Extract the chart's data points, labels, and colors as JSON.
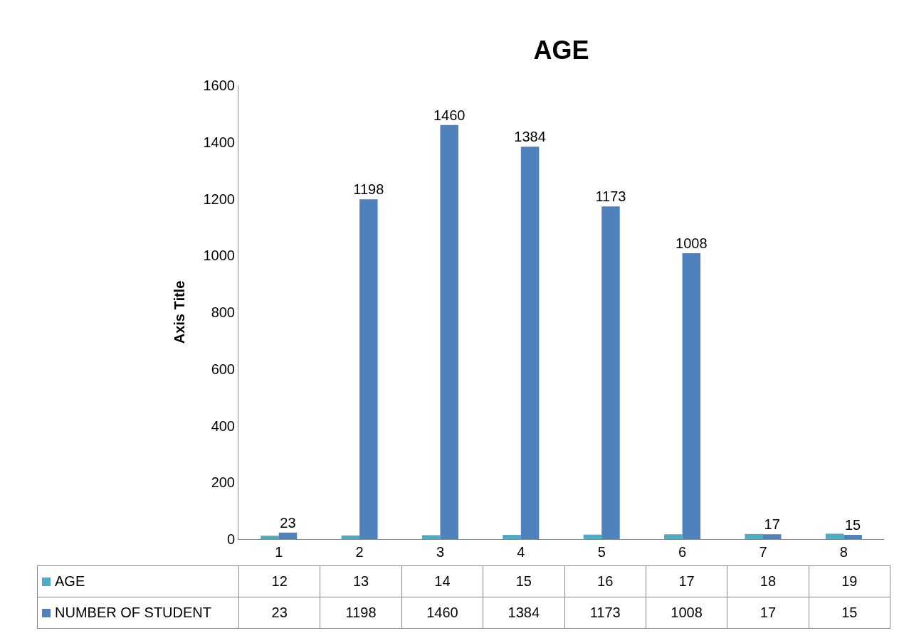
{
  "chart_data": {
    "type": "bar",
    "title": "AGE",
    "ylabel": "Axis Title",
    "categories": [
      "1",
      "2",
      "3",
      "4",
      "5",
      "6",
      "7",
      "8"
    ],
    "series": [
      {
        "name": "AGE",
        "color": "#4bacc6",
        "values": [
          12,
          13,
          14,
          15,
          16,
          17,
          18,
          19
        ]
      },
      {
        "name": "NUMBER OF STUDENT",
        "color": "#4f81bd",
        "values": [
          23,
          1198,
          1460,
          1384,
          1173,
          1008,
          17,
          15
        ],
        "value_labels": [
          "23",
          "1198",
          "1460",
          "1384",
          "1173",
          "1008",
          "17",
          "15"
        ]
      }
    ],
    "ylim": [
      0,
      1600
    ],
    "yticks": [
      0,
      200,
      400,
      600,
      800,
      1000,
      1200,
      1400,
      1600
    ],
    "grid": false,
    "legend": "bottom",
    "data_labels": true
  }
}
